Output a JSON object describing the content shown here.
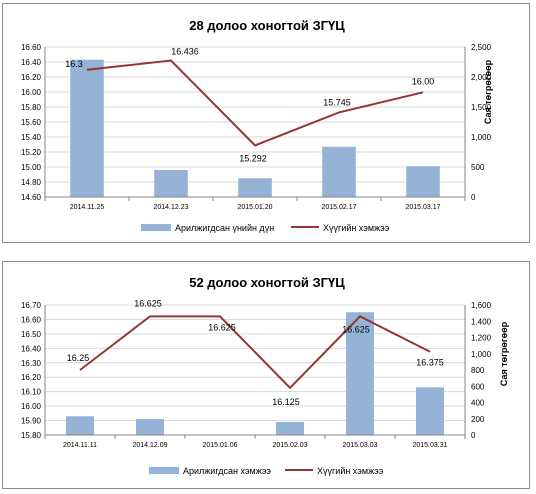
{
  "chart_data": [
    {
      "type": "bar+line",
      "title": "28 долоо хоногтой ЗГҮЦ",
      "categories": [
        "2014.11.25",
        "2014.12.23",
        "2015.01.20",
        "2015.02.17",
        "2015.03.17"
      ],
      "series": [
        {
          "name": "Арилжигдсан үнийн дүн",
          "type": "bar",
          "axis": "left",
          "color": "#95b3d7",
          "values": [
            16.43,
            14.96,
            14.85,
            15.27,
            15.01
          ]
        },
        {
          "name": "Хүүгийн хэмжээ",
          "type": "line",
          "axis": "right",
          "color": "#943634",
          "values": [
            2120,
            2275,
            860,
            1410,
            1745
          ],
          "labels": [
            "16.3",
            "16.436",
            "15.292",
            "15.745",
            "16.00"
          ]
        }
      ],
      "ylim_left": [
        14.6,
        16.6
      ],
      "yticks_left": [
        "14.60",
        "14.80",
        "15.00",
        "15.20",
        "15.40",
        "15.60",
        "15.80",
        "16.00",
        "16.20",
        "16.40",
        "16.60"
      ],
      "ylim_right": [
        0,
        2500
      ],
      "yticks_right": [
        "0",
        "500",
        "1,000",
        "1,500",
        "2,000",
        "2,500"
      ],
      "ylabel_right": "Сая төгрөгөөр",
      "grid": true,
      "legend": "bottom"
    },
    {
      "type": "bar+line",
      "title": "52 долоо хоногтой ЗГҮЦ",
      "categories": [
        "2014.11.11",
        "2014.12.09",
        "2015.01.06",
        "2015.02.03",
        "2015.03.03",
        "2015.03.31"
      ],
      "series": [
        {
          "name": "Арилжигдсан хэмжээ",
          "type": "bar",
          "axis": "left",
          "color": "#95b3d7",
          "values": [
            15.93,
            15.91,
            15.8,
            15.89,
            16.65,
            16.13
          ]
        },
        {
          "name": "Хүүгийн хэмжээ",
          "type": "line",
          "axis": "right",
          "color": "#943634",
          "values": [
            800,
            1460,
            1460,
            580,
            1460,
            1025
          ],
          "labels": [
            "16.25",
            "16.625",
            "16.625",
            "16.125",
            "16.625",
            "16.375"
          ]
        }
      ],
      "ylim_left": [
        15.8,
        16.7
      ],
      "yticks_left": [
        "15.80",
        "15.90",
        "16.00",
        "16.10",
        "16.20",
        "16.30",
        "16.40",
        "16.50",
        "16.60",
        "16.70"
      ],
      "ylim_right": [
        0,
        1600
      ],
      "yticks_right": [
        "0",
        "200",
        "400",
        "600",
        "800",
        "1,000",
        "1,200",
        "1,400",
        "1,600"
      ],
      "ylabel_right": "Сая төгрөгөөр",
      "grid": true,
      "legend": "bottom"
    }
  ]
}
